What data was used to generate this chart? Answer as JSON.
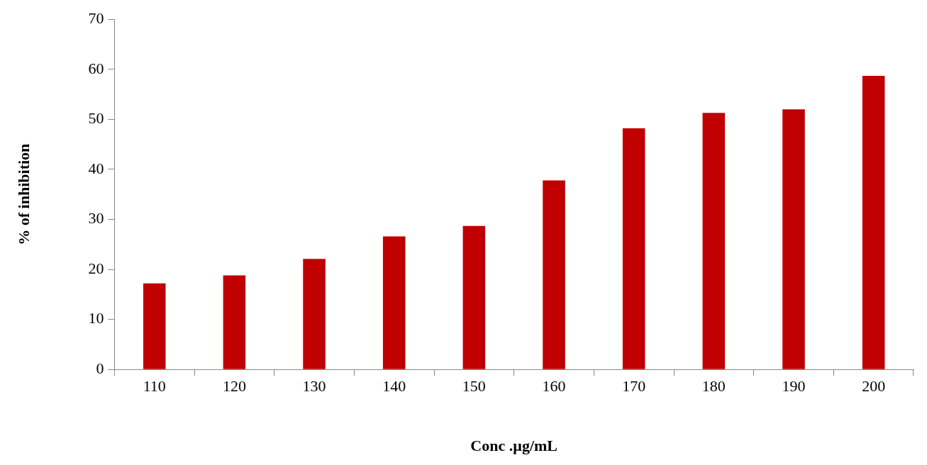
{
  "chart_data": {
    "type": "bar",
    "xlabel": "Conc .µg/mL",
    "ylabel": "% of inhibition",
    "categories": [
      "110",
      "120",
      "130",
      "140",
      "150",
      "160",
      "170",
      "180",
      "190",
      "200"
    ],
    "values": [
      17.2,
      18.8,
      22.1,
      26.6,
      28.7,
      37.8,
      48.2,
      51.3,
      52,
      58.7
    ],
    "color": "#c00000",
    "ylim": [
      0,
      70
    ],
    "yticks": [
      0,
      10,
      20,
      30,
      40,
      50,
      60,
      70
    ],
    "grid": false,
    "legend": false
  }
}
